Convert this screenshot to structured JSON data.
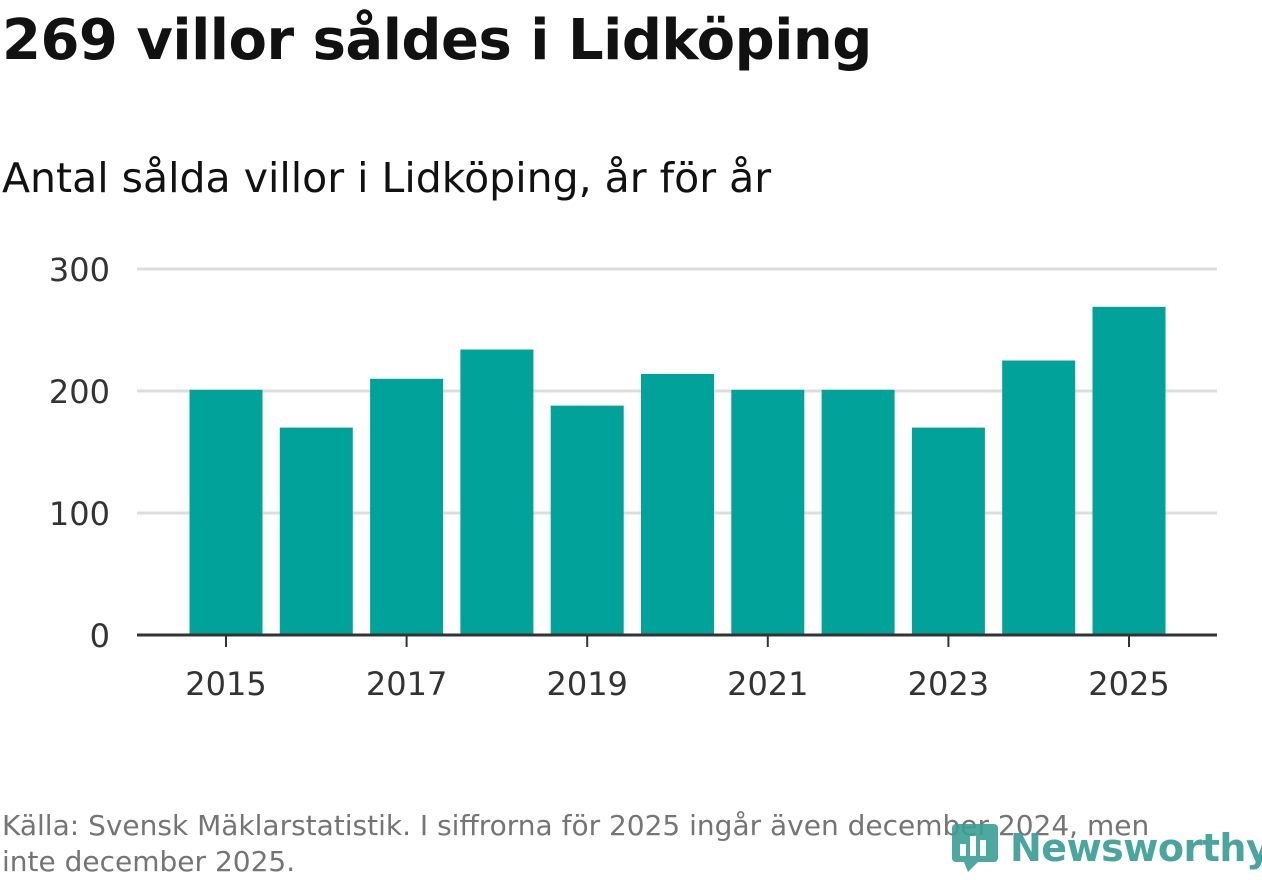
{
  "title": "269 villor såldes i Lidköping",
  "subtitle": "Antal sålda villor i Lidköping, år för år",
  "source_text": "Källa: Svensk Mäklarstatistik. I siffrorna för 2025 ingår även december 2024, men inte december 2025.",
  "logo_text": "Newsworthy",
  "colors": {
    "bar": "#00a29a",
    "grid": "#dddddd",
    "axis": "#333333",
    "logo": "#3a9e96"
  },
  "chart_data": {
    "type": "bar",
    "title": "Antal sålda villor i Lidköping, år för år",
    "xlabel": "",
    "ylabel": "",
    "categories": [
      "2015",
      "2016",
      "2017",
      "2018",
      "2019",
      "2020",
      "2021",
      "2022",
      "2023",
      "2024",
      "2025"
    ],
    "values": [
      201,
      170,
      210,
      234,
      188,
      214,
      201,
      201,
      170,
      225,
      269
    ],
    "ylim": [
      0,
      300
    ],
    "yticks": [
      0,
      100,
      200,
      300
    ],
    "xtick_labels": [
      "2015",
      "2017",
      "2019",
      "2021",
      "2023",
      "2025"
    ],
    "grid": true,
    "legend": "none"
  }
}
